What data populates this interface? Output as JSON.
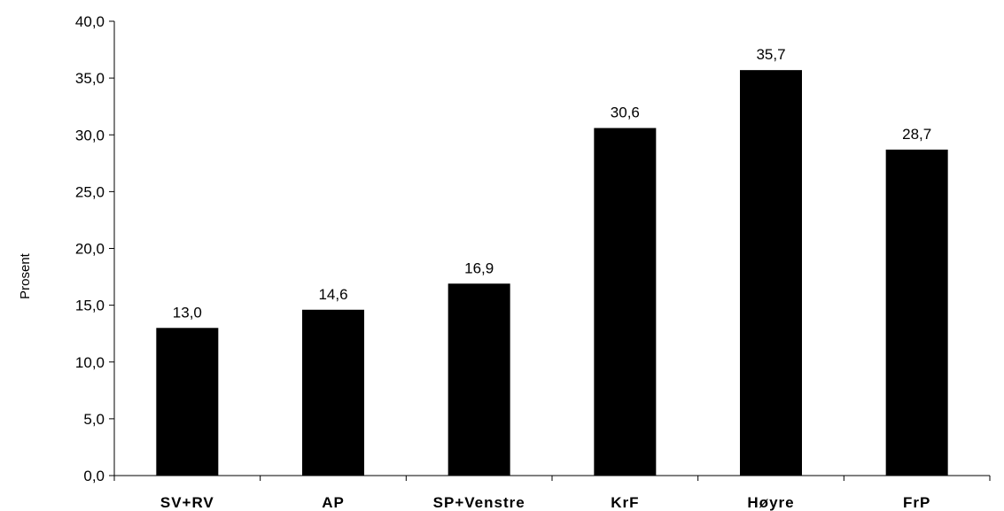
{
  "chart_data": {
    "type": "bar",
    "categories": [
      "SV+RV",
      "AP",
      "SP+Venstre",
      "KrF",
      "Høyre",
      "FrP"
    ],
    "values": [
      13.0,
      14.6,
      16.9,
      30.6,
      35.7,
      28.7
    ],
    "value_labels": [
      "13,0",
      "14,6",
      "16,9",
      "30,6",
      "35,7",
      "28,7"
    ],
    "ylabel": "Prosent",
    "ylim": [
      0,
      40
    ],
    "yticks": [
      0,
      5,
      10,
      15,
      20,
      25,
      30,
      35,
      40
    ],
    "ytick_labels": [
      "0,0",
      "5,0",
      "10,0",
      "15,0",
      "20,0",
      "25,0",
      "30,0",
      "35,0",
      "40,0"
    ],
    "bar_color": "#000000",
    "grid": false,
    "legend": false
  }
}
